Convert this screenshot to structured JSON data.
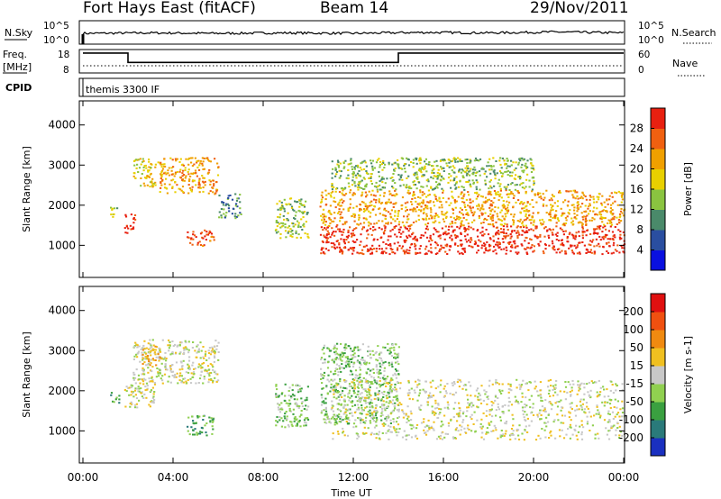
{
  "header": {
    "radar": "Fort Hays East (fitACF)",
    "beam": "Beam 14",
    "date": "29/Nov/2011",
    "cpid_label": "CPID",
    "cpid_value": "themis 3300 IF",
    "nsky_label": "N.Sky",
    "nsearch_label": "N.Search",
    "freq_label_1": "Freq.",
    "freq_label_2": "[MHz]",
    "nave_label": "Nave",
    "noise_left_ticks": [
      "10^5",
      "10^0"
    ],
    "noise_right_ticks": [
      "10^5",
      "10^0"
    ],
    "freq_left_ticks": [
      "18",
      "8"
    ],
    "nave_right_ticks": [
      "60",
      "0"
    ]
  },
  "chart_data": [
    {
      "type": "line",
      "panel": "noise",
      "x": [
        0,
        3,
        6,
        9,
        12,
        15,
        18,
        21,
        24
      ],
      "series": [
        {
          "name": "N.Sky",
          "values": [
            2.3,
            2.4,
            2.3,
            2.4,
            2.3,
            2.5,
            2.4,
            2.6,
            2.4
          ]
        }
      ],
      "ylim": [
        0,
        5
      ],
      "yscale": "log"
    },
    {
      "type": "line",
      "panel": "frequency",
      "x": [
        0,
        2,
        2,
        14,
        14,
        24
      ],
      "series": [
        {
          "name": "Freq",
          "values": [
            16.5,
            16.5,
            12.5,
            12.5,
            16.5,
            16.5
          ]
        }
      ],
      "ylim": [
        8,
        18
      ]
    },
    {
      "type": "heatmap",
      "panel": "power",
      "title": "",
      "xlabel": "Time UT",
      "ylabel": "Slant Range [km]",
      "xlim": [
        0,
        24
      ],
      "ylim": [
        200,
        4600
      ],
      "x_ticks": [
        "00:00",
        "04:00",
        "08:00",
        "12:00",
        "16:00",
        "20:00",
        "00:00"
      ],
      "y_ticks": [
        "1000",
        "2000",
        "3000",
        "4000"
      ],
      "colorbar_label": "Power [dB]",
      "colorbar_ticks": [
        "4",
        "8",
        "12",
        "16",
        "20",
        "24",
        "28"
      ],
      "colorbar_colors": [
        "#0a10e0",
        "#2a4ea0",
        "#4a8a6a",
        "#8ac440",
        "#e8d000",
        "#f0a000",
        "#f06010",
        "#e82010"
      ],
      "regions": [
        {
          "t0": 1.2,
          "t1": 1.6,
          "r0": 1700,
          "r1": 2000,
          "level": 3
        },
        {
          "t0": 1.8,
          "t1": 2.3,
          "r0": 1300,
          "r1": 1800,
          "level": 7
        },
        {
          "t0": 2.2,
          "t1": 3.2,
          "r0": 2400,
          "r1": 3200,
          "level": 4
        },
        {
          "t0": 3.3,
          "t1": 6.0,
          "r0": 2300,
          "r1": 3200,
          "level": 5
        },
        {
          "t0": 4.6,
          "t1": 5.8,
          "r0": 1000,
          "r1": 1400,
          "level": 6
        },
        {
          "t0": 6.0,
          "t1": 7.0,
          "r0": 1700,
          "r1": 2300,
          "level": 2
        },
        {
          "t0": 8.5,
          "t1": 10.0,
          "r0": 1200,
          "r1": 2200,
          "level": 3
        },
        {
          "t0": 10.5,
          "t1": 24.0,
          "r0": 800,
          "r1": 1500,
          "level": 7
        },
        {
          "t0": 10.5,
          "t1": 24.0,
          "r0": 1500,
          "r1": 2400,
          "level": 5
        },
        {
          "t0": 11.0,
          "t1": 20.0,
          "r0": 2400,
          "r1": 3200,
          "level": 3
        }
      ]
    },
    {
      "type": "heatmap",
      "panel": "velocity",
      "title": "",
      "xlabel": "Time UT",
      "ylabel": "Slant Range [km]",
      "xlim": [
        0,
        24
      ],
      "ylim": [
        200,
        4600
      ],
      "x_ticks": [
        "00:00",
        "04:00",
        "08:00",
        "12:00",
        "16:00",
        "20:00",
        "00:00"
      ],
      "y_ticks": [
        "1000",
        "2000",
        "3000",
        "4000"
      ],
      "colorbar_label": "Velocity [m s-1]",
      "colorbar_ticks": [
        "200",
        "100",
        "50",
        "15",
        "-15",
        "-50",
        "-100",
        "-200"
      ],
      "colorbar_colors": [
        "#1a30c0",
        "#2a7a7a",
        "#3aa040",
        "#90d050",
        "#c8c8c8",
        "#f0c020",
        "#f08a10",
        "#f05010",
        "#e01010"
      ],
      "regions": [
        {
          "t0": 1.2,
          "t1": 1.6,
          "r0": 1700,
          "r1": 2000,
          "level": 2
        },
        {
          "t0": 1.8,
          "t1": 3.2,
          "r0": 1600,
          "r1": 2200,
          "level": 4
        },
        {
          "t0": 2.2,
          "t1": 6.0,
          "r0": 2200,
          "r1": 3300,
          "level": 4
        },
        {
          "t0": 2.6,
          "t1": 3.4,
          "r0": 2600,
          "r1": 3200,
          "level": 5
        },
        {
          "t0": 4.6,
          "t1": 5.8,
          "r0": 900,
          "r1": 1400,
          "level": 2
        },
        {
          "t0": 8.5,
          "t1": 10.0,
          "r0": 1100,
          "r1": 2200,
          "level": 3
        },
        {
          "t0": 10.5,
          "t1": 14.0,
          "r0": 1200,
          "r1": 3200,
          "level": 3
        },
        {
          "t0": 11.0,
          "t1": 24.0,
          "r0": 800,
          "r1": 2300,
          "level": 4
        }
      ]
    }
  ]
}
